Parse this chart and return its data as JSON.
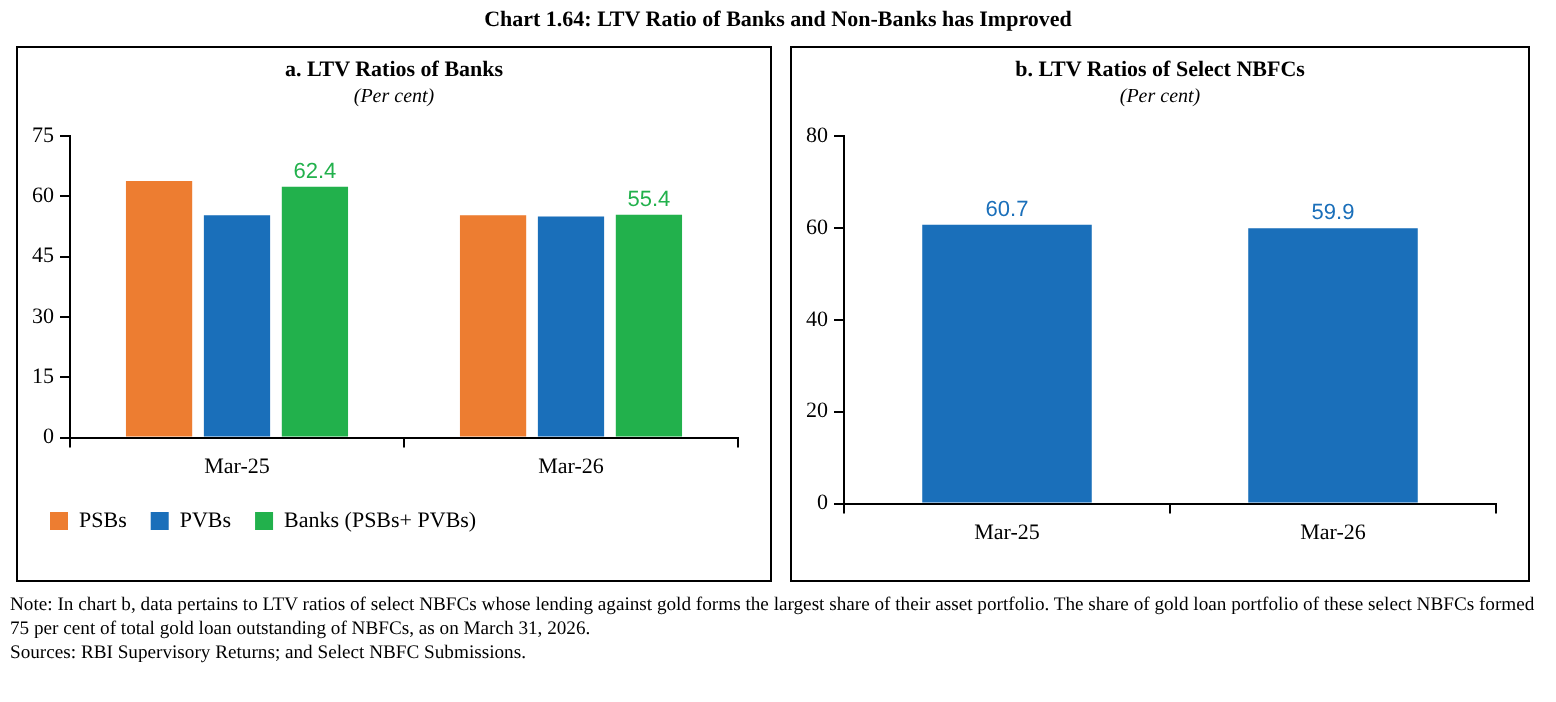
{
  "chart_data": [
    {
      "type": "bar",
      "title": "a. LTV Ratios of Banks",
      "subtitle": "(Per cent)",
      "annotations": [
        "Chart 1.64: LTV Ratio of Banks and Non-Banks has Improved"
      ],
      "categories": [
        "Mar-25",
        "Mar-26"
      ],
      "series": [
        {
          "name": "PSBs",
          "color": "#ed7d31",
          "values": [
            63.8,
            55.3
          ]
        },
        {
          "name": "PVBs",
          "color": "#1a6fba",
          "values": [
            55.3,
            55.0
          ]
        },
        {
          "name": "Banks (PSBs+ PVBs)",
          "color": "#22b14c",
          "values": [
            62.4,
            55.4
          ],
          "value_labels": [
            "62.4",
            "55.4"
          ]
        }
      ],
      "ylim": [
        0,
        75
      ],
      "yticks": [
        0,
        15,
        30,
        45,
        60,
        75
      ],
      "grid": false,
      "legend": "bottom"
    },
    {
      "type": "bar",
      "title": "b. LTV Ratios of Select NBFCs",
      "subtitle": "(Per cent)",
      "annotations": [
        "Note: In chart b, data pertains to LTV ratios of select NBFCs whose lending against gold forms the largest share of their asset portfolio. The share of gold loan portfolio of these select NBFCs formed 75 per cent of total gold loan outstanding of NBFCs, as on March 31, 2026.",
        "Sources: RBI Supervisory Returns; and Select NBFC Submissions."
      ],
      "categories": [
        "Mar-25",
        "Mar-26"
      ],
      "series": [
        {
          "color": "#1a6fba",
          "values": [
            60.7,
            59.9
          ]
        }
      ],
      "ylim": [
        0,
        80
      ],
      "yticks": [
        0,
        20,
        40,
        60,
        80
      ],
      "grid": false,
      "data_labels": true
    }
  ]
}
